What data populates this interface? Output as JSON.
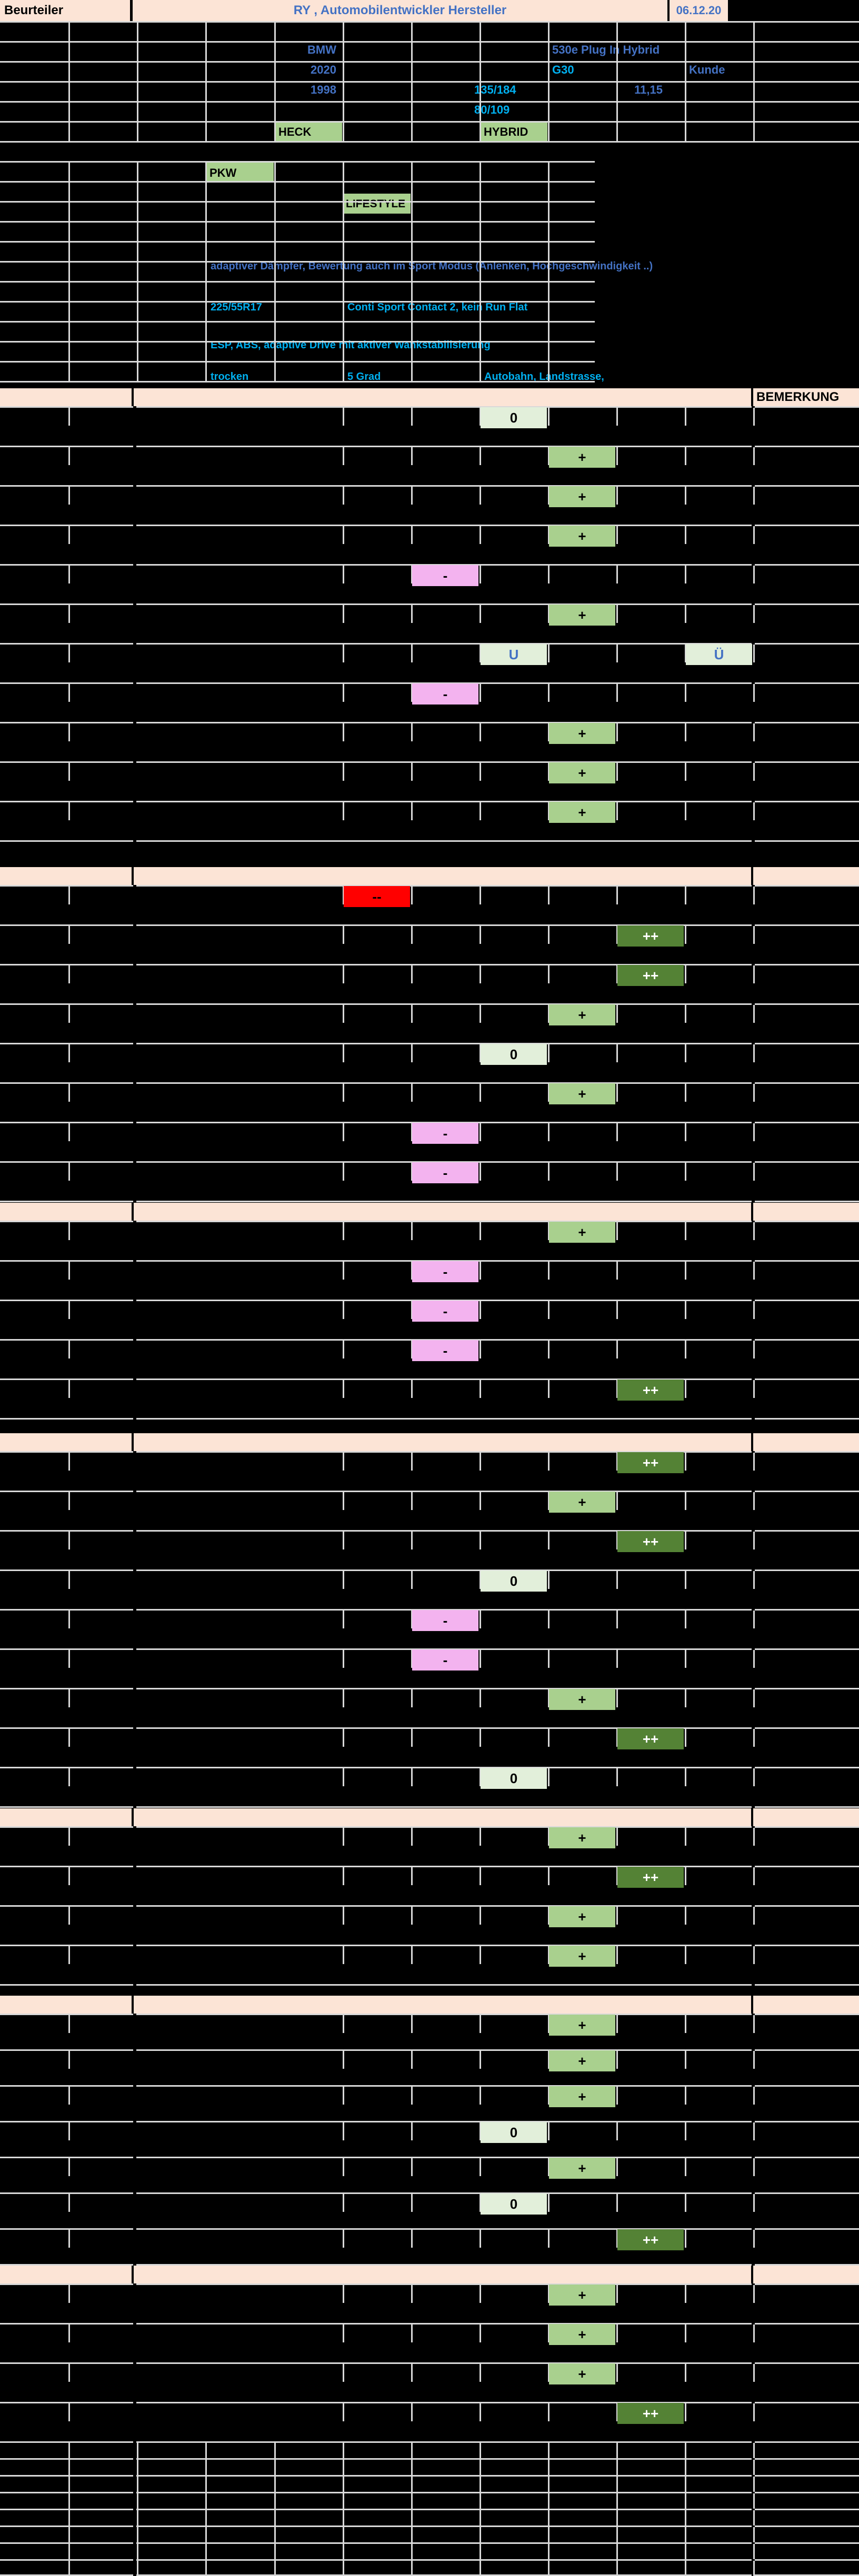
{
  "sheet": {
    "title_row": {
      "assessor_label": "Beurteiler",
      "title": "RY , Automobilentwickler Hersteller",
      "date": "06.12.20"
    },
    "info": {
      "brand": "BMW",
      "model": "530e Plug In Hybrid",
      "year": "2020",
      "series_code": "G30",
      "customer": "Kunde",
      "year2": "1998",
      "power_kw_hp": "135/184",
      "consumption": "11,15",
      "power2_kw_hp": "80/109",
      "drive": "HECK",
      "powertrain": "HYBRID",
      "vehicle_class": "PKW",
      "segment": "LIFESTYLE",
      "damper_note": "adaptiver Dämpfer, Bewertung auch im Sport Modus (Anlenken, Hochgeschwindigkeit ..)",
      "tire_size": "225/55R17",
      "tire_type": "Conti Sport Contact 2, kein Run Flat",
      "assist_systems": "ESP, ABS, adaptive Drive mit aktiver Wankstabilisierung",
      "road_condition": "trocken",
      "temperature": "5 Grad",
      "route": "Autobahn, Landstrasse,"
    },
    "remark_header": "BEMERKUNG",
    "rating_values": [
      "--",
      "-",
      "0",
      "+",
      "++",
      "U",
      "Ü"
    ],
    "sections": [
      {
        "name": "section-1",
        "rows": [
          "0",
          "+",
          "+",
          "+",
          "-",
          "+",
          "U|Ü",
          "-",
          "+",
          "+",
          "+"
        ]
      },
      {
        "name": "section-2",
        "rows": [
          "--",
          "++",
          "++",
          "+",
          "0",
          "+",
          "-",
          "-"
        ]
      },
      {
        "name": "section-3",
        "rows": [
          "+",
          "-",
          "-",
          "-",
          "++"
        ]
      },
      {
        "name": "section-4",
        "rows": [
          "++",
          "+",
          "++",
          "0",
          "-",
          "-",
          "+",
          "++",
          "0"
        ]
      },
      {
        "name": "section-5",
        "rows": [
          "+",
          "++",
          "+",
          "+"
        ]
      },
      {
        "name": "section-6",
        "rows": [
          "+",
          "+",
          "+",
          "0",
          "+",
          "0",
          "++"
        ]
      },
      {
        "name": "section-7",
        "rows": [
          "+",
          "+",
          "+",
          "++"
        ]
      }
    ],
    "colors": {
      "peach": "#fce4d6",
      "green_header": "#a9d08e",
      "plus": "#a9d08e",
      "plusplus": "#548235",
      "neutral": "#e2efda",
      "minus": "#f3b3ef",
      "minusminus": "#ff0000",
      "grid": "#d9d9d9",
      "blue": "#4472c4",
      "cyan": "#00b0f0"
    }
  }
}
